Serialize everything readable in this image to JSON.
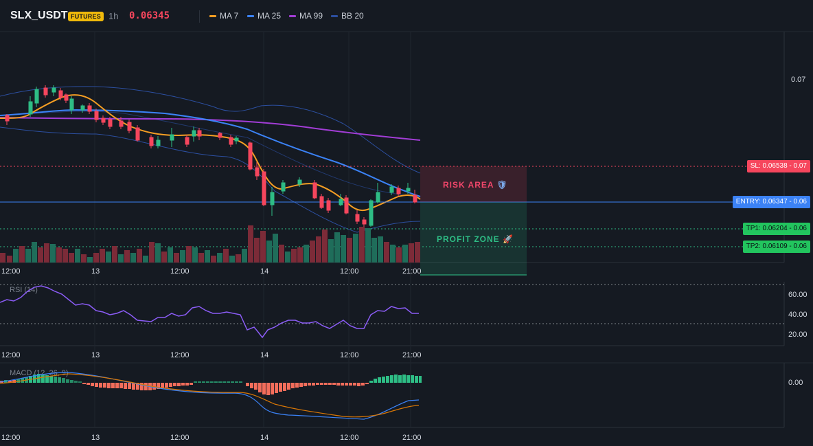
{
  "header": {
    "symbol": "SLX_USDT",
    "badge": "FUTURES",
    "timeframe": "1h",
    "price": "0.06345",
    "price_color": "#f6465d"
  },
  "indicators": [
    {
      "label": "MA 7",
      "color": "#f59e23"
    },
    {
      "label": "MA 25",
      "color": "#3b82f6"
    },
    {
      "label": "MA 99",
      "color": "#a23dd6"
    },
    {
      "label": "BB 20",
      "color": "#2c4fa0"
    }
  ],
  "price_axis": {
    "tick_0_07": "0.07"
  },
  "x_axis": {
    "labels": [
      "12:00",
      "13",
      "12:00",
      "14",
      "12:00",
      "21:00"
    ]
  },
  "zones": {
    "risk_label": "RISK AREA",
    "risk_icon": "shield-icon",
    "profit_label": "PROFIT ZONE",
    "profit_icon": "rocket-icon"
  },
  "levels": {
    "sl": "SL: 0.06538 - 0.07",
    "entry": "ENTRY: 0.06347 - 0.06",
    "tp1": "TP1: 0.06204 - 0.06",
    "tp2": "TP2: 0.06109 - 0.06"
  },
  "rsi": {
    "title": "RSI (14)",
    "ticks": [
      "60.00",
      "40.00",
      "20.00"
    ]
  },
  "macd": {
    "title": "MACD (12, 26, 9)",
    "tick": "0.00"
  },
  "colors": {
    "up": "#2ebd85",
    "down": "#f6465d",
    "background": "#151a22"
  }
}
